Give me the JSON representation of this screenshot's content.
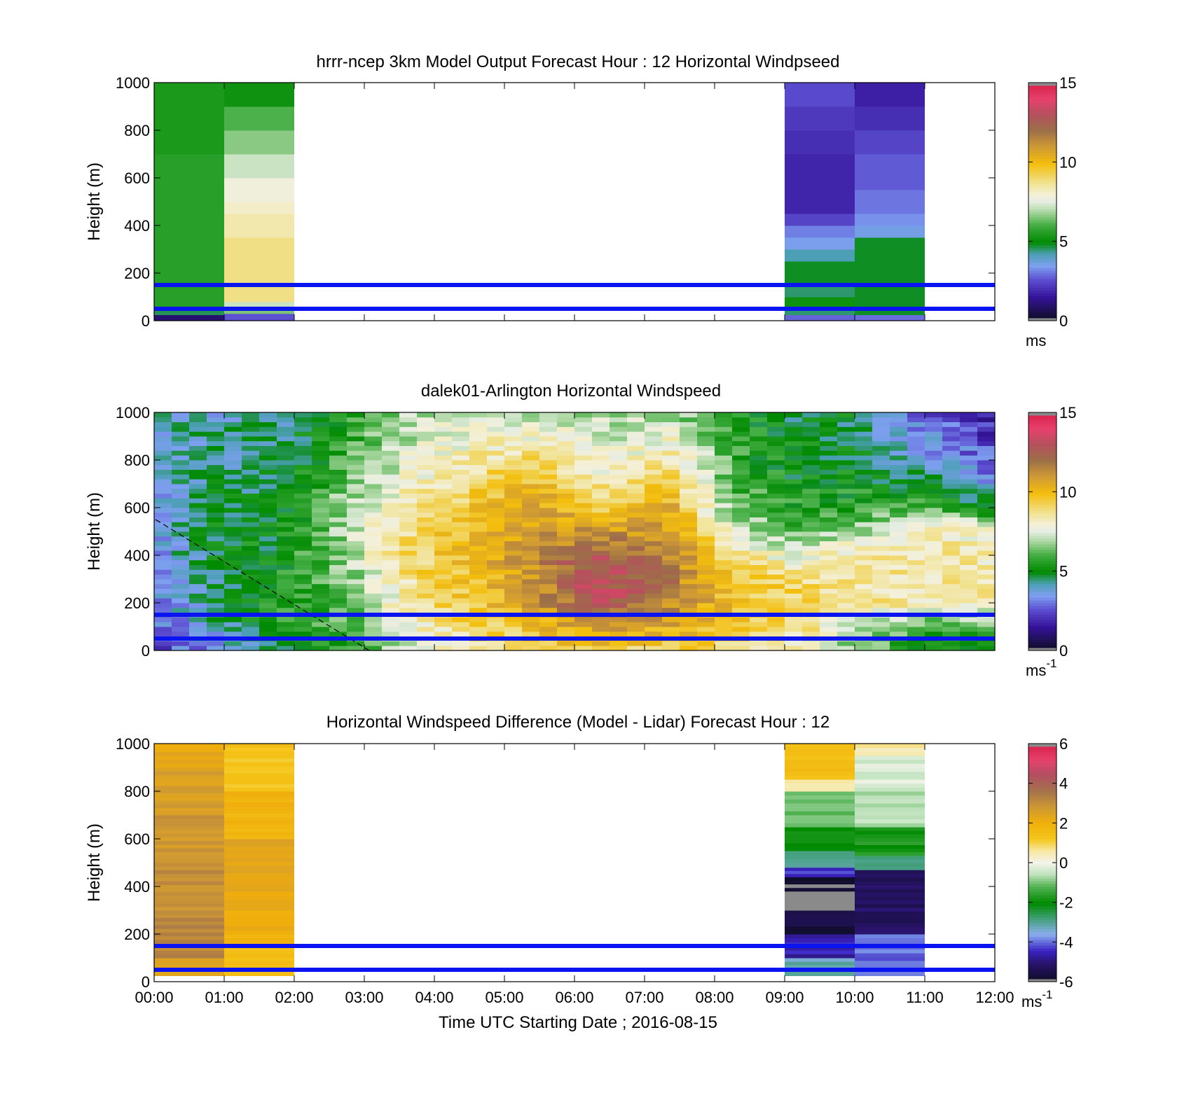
{
  "figure": {
    "xlabel": "Time UTC  Starting Date ; 2016-08-15",
    "time_ticks": [
      "00:00",
      "01:00",
      "02:00",
      "03:00",
      "04:00",
      "05:00",
      "06:00",
      "07:00",
      "08:00",
      "09:00",
      "10:00",
      "11:00",
      "12:00"
    ],
    "xlim_hours": [
      0,
      12
    ]
  },
  "chart_data": [
    {
      "type": "heatmap",
      "title": "hrrr-ncep 3km Model Output   Forecast Hour : 12 Horizontal Windpseed",
      "ylabel": "Height (m)",
      "ylim": [
        0,
        1000
      ],
      "yticks": [
        0,
        200,
        400,
        600,
        800,
        1000
      ],
      "xlim_hours": [
        0,
        12
      ],
      "colorbar": {
        "min": 0,
        "max": 15,
        "ticks": [
          0,
          5,
          10,
          15
        ],
        "unit": "ms",
        "unit_sup": "",
        "palette": "speed"
      },
      "reference_lines_m": [
        50,
        150
      ],
      "columns": [
        {
          "t0": 0,
          "t1": 1,
          "levels": [
            {
              "z0": 0,
              "z1": 25,
              "v": 1.0
            },
            {
              "z0": 25,
              "z1": 50,
              "v": 4.6
            },
            {
              "z0": 50,
              "z1": 700,
              "v": 5.6
            },
            {
              "z0": 700,
              "z1": 1000,
              "v": 5.4
            }
          ]
        },
        {
          "t0": 1,
          "t1": 2,
          "levels": [
            {
              "z0": 0,
              "z1": 30,
              "v": 2.6
            },
            {
              "z0": 30,
              "z1": 60,
              "v": 6.5
            },
            {
              "z0": 60,
              "z1": 80,
              "v": 7.2
            },
            {
              "z0": 80,
              "z1": 350,
              "v": 8.8
            },
            {
              "z0": 350,
              "z1": 450,
              "v": 8.4
            },
            {
              "z0": 450,
              "z1": 500,
              "v": 8.1
            },
            {
              "z0": 500,
              "z1": 600,
              "v": 7.8
            },
            {
              "z0": 600,
              "z1": 700,
              "v": 7.2
            },
            {
              "z0": 700,
              "z1": 800,
              "v": 6.6
            },
            {
              "z0": 800,
              "z1": 900,
              "v": 6.1
            },
            {
              "z0": 900,
              "z1": 1000,
              "v": 5.2
            }
          ]
        },
        {
          "t0": 9,
          "t1": 10,
          "levels": [
            {
              "z0": 0,
              "z1": 25,
              "v": 2.8
            },
            {
              "z0": 25,
              "z1": 50,
              "v": 4.5
            },
            {
              "z0": 50,
              "z1": 100,
              "v": 5.2
            },
            {
              "z0": 100,
              "z1": 150,
              "v": 4.5
            },
            {
              "z0": 150,
              "z1": 250,
              "v": 4.8
            },
            {
              "z0": 250,
              "z1": 300,
              "v": 4.2
            },
            {
              "z0": 300,
              "z1": 350,
              "v": 3.5
            },
            {
              "z0": 350,
              "z1": 400,
              "v": 3.1
            },
            {
              "z0": 400,
              "z1": 450,
              "v": 2.4
            },
            {
              "z0": 450,
              "z1": 700,
              "v": 1.8
            },
            {
              "z0": 700,
              "z1": 800,
              "v": 2.0
            },
            {
              "z0": 800,
              "z1": 900,
              "v": 2.2
            },
            {
              "z0": 900,
              "z1": 1000,
              "v": 2.5
            }
          ]
        },
        {
          "t0": 10,
          "t1": 11,
          "levels": [
            {
              "z0": 0,
              "z1": 25,
              "v": 2.9
            },
            {
              "z0": 25,
              "z1": 350,
              "v": 4.8
            },
            {
              "z0": 350,
              "z1": 400,
              "v": 3.6
            },
            {
              "z0": 400,
              "z1": 450,
              "v": 3.3
            },
            {
              "z0": 450,
              "z1": 500,
              "v": 3.0
            },
            {
              "z0": 500,
              "z1": 550,
              "v": 3.0
            },
            {
              "z0": 550,
              "z1": 700,
              "v": 2.7
            },
            {
              "z0": 700,
              "z1": 800,
              "v": 2.4
            },
            {
              "z0": 800,
              "z1": 900,
              "v": 2.0
            },
            {
              "z0": 900,
              "z1": 1000,
              "v": 1.7
            }
          ]
        }
      ]
    },
    {
      "type": "heatmap",
      "title": "dalek01-Arlington  Horizontal Windspeed",
      "ylabel": "Height (m)",
      "ylim": [
        0,
        1000
      ],
      "yticks": [
        0,
        200,
        400,
        600,
        800,
        1000
      ],
      "xlim_hours": [
        0,
        12
      ],
      "colorbar": {
        "min": 0,
        "max": 15,
        "ticks": [
          0,
          5,
          10,
          15
        ],
        "unit": "ms",
        "unit_sup": "-1",
        "palette": "speed"
      },
      "reference_lines_m": [
        50,
        150
      ],
      "data_end_hour": 11.9,
      "column_width_hours": 0.25,
      "profile_heights_m": [
        0,
        100,
        200,
        300,
        400,
        500,
        600,
        700,
        800,
        900,
        1000
      ],
      "profiles": [
        [
          2.5,
          2.8,
          3.0,
          3.2,
          3.4,
          3.5,
          3.5,
          3.6,
          3.8,
          4.0,
          4.2
        ],
        [
          3.5,
          4.2,
          4.6,
          4.6,
          4.8,
          5.0,
          4.8,
          4.6,
          4.4,
          4.2,
          4.0
        ],
        [
          4.8,
          5.6,
          5.6,
          5.4,
          5.2,
          5.0,
          4.8,
          4.6,
          4.4,
          4.4,
          4.4
        ],
        [
          5.4,
          6.0,
          6.2,
          6.5,
          6.8,
          7.0,
          7.0,
          6.5,
          6.0,
          5.6,
          5.4
        ],
        [
          7.0,
          8.0,
          8.5,
          8.8,
          9.0,
          9.0,
          8.6,
          8.0,
          7.5,
          7.2,
          7.0
        ],
        [
          8.5,
          9.2,
          9.6,
          9.8,
          10.0,
          10.0,
          9.6,
          9.0,
          8.5,
          7.8,
          7.4
        ],
        [
          9.0,
          10.0,
          11.0,
          11.2,
          11.5,
          11.0,
          10.5,
          10.0,
          9.0,
          8.0,
          7.0
        ],
        [
          9.5,
          11.0,
          13.0,
          13.5,
          12.5,
          11.0,
          9.5,
          8.5,
          7.6,
          7.2,
          7.0
        ],
        [
          9.0,
          10.5,
          11.5,
          11.8,
          11.5,
          11.0,
          10.5,
          9.8,
          8.8,
          7.8,
          7.0
        ],
        [
          9.0,
          9.5,
          9.8,
          9.8,
          9.0,
          7.5,
          6.5,
          6.0,
          5.8,
          5.6,
          5.4
        ],
        [
          7.8,
          9.0,
          9.2,
          9.0,
          7.5,
          6.2,
          5.6,
          5.2,
          5.0,
          5.0,
          4.8
        ],
        [
          6.5,
          7.0,
          8.8,
          8.5,
          8.6,
          7.0,
          5.4,
          5.4,
          4.8,
          4.6,
          4.8
        ],
        [
          5.0,
          6.0,
          8.4,
          8.6,
          8.6,
          8.4,
          6.4,
          4.6,
          4.0,
          3.4,
          2.8
        ],
        [
          5.0,
          6.0,
          8.2,
          8.4,
          8.2,
          7.8,
          5.0,
          3.6,
          2.8,
          2.2,
          1.8
        ]
      ]
    },
    {
      "type": "heatmap",
      "title": "Horizontal Windspeed Difference (Model - Lidar) Forecast Hour : 12",
      "ylabel": "Height (m)",
      "ylim": [
        0,
        1000
      ],
      "yticks": [
        0,
        200,
        400,
        600,
        800,
        1000
      ],
      "xlim_hours": [
        0,
        12
      ],
      "colorbar": {
        "min": -6,
        "max": 6,
        "ticks": [
          -6,
          -4,
          -2,
          0,
          2,
          4,
          6
        ],
        "unit": "ms",
        "unit_sup": "-1",
        "palette": "diff"
      },
      "reference_lines_m": [
        50,
        150
      ],
      "columns": [
        {
          "t0": 0,
          "t1": 1,
          "levels": [
            {
              "z0": 25,
              "z1": 100,
              "v": 2.6
            },
            {
              "z0": 100,
              "z1": 300,
              "v": 3.2
            },
            {
              "z0": 300,
              "z1": 500,
              "v": 3.0
            },
            {
              "z0": 500,
              "z1": 700,
              "v": 2.8
            },
            {
              "z0": 700,
              "z1": 900,
              "v": 2.6
            },
            {
              "z0": 900,
              "z1": 1000,
              "v": 2.2
            }
          ]
        },
        {
          "t0": 1,
          "t1": 2,
          "levels": [
            {
              "z0": 25,
              "z1": 150,
              "v": 1.4
            },
            {
              "z0": 150,
              "z1": 300,
              "v": 2.0
            },
            {
              "z0": 300,
              "z1": 600,
              "v": 2.3
            },
            {
              "z0": 600,
              "z1": 800,
              "v": 1.8
            },
            {
              "z0": 800,
              "z1": 1000,
              "v": 1.3
            }
          ]
        },
        {
          "t0": 9,
          "t1": 10,
          "levels": [
            {
              "z0": 25,
              "z1": 100,
              "v": -3.2
            },
            {
              "z0": 100,
              "z1": 200,
              "v": -4.6
            },
            {
              "z0": 200,
              "z1": 300,
              "v": -5.6
            },
            {
              "z0": 300,
              "z1": 380,
              "v": -6.5
            },
            {
              "z0": 380,
              "z1": 440,
              "v": -5.8
            },
            {
              "z0": 440,
              "z1": 480,
              "v": -4.4
            },
            {
              "z0": 480,
              "z1": 550,
              "v": -3.0
            },
            {
              "z0": 550,
              "z1": 650,
              "v": -2.0
            },
            {
              "z0": 650,
              "z1": 800,
              "v": -1.0
            },
            {
              "z0": 800,
              "z1": 850,
              "v": 0.5
            },
            {
              "z0": 850,
              "z1": 1000,
              "v": 1.5
            }
          ]
        },
        {
          "t0": 10,
          "t1": 11,
          "levels": [
            {
              "z0": 25,
              "z1": 200,
              "v": -4.0
            },
            {
              "z0": 200,
              "z1": 470,
              "v": -5.2
            },
            {
              "z0": 470,
              "z1": 530,
              "v": -3.0
            },
            {
              "z0": 530,
              "z1": 650,
              "v": -1.8
            },
            {
              "z0": 650,
              "z1": 800,
              "v": -0.6
            },
            {
              "z0": 800,
              "z1": 950,
              "v": -0.3
            },
            {
              "z0": 950,
              "z1": 1000,
              "v": 0.5
            }
          ]
        }
      ]
    }
  ]
}
